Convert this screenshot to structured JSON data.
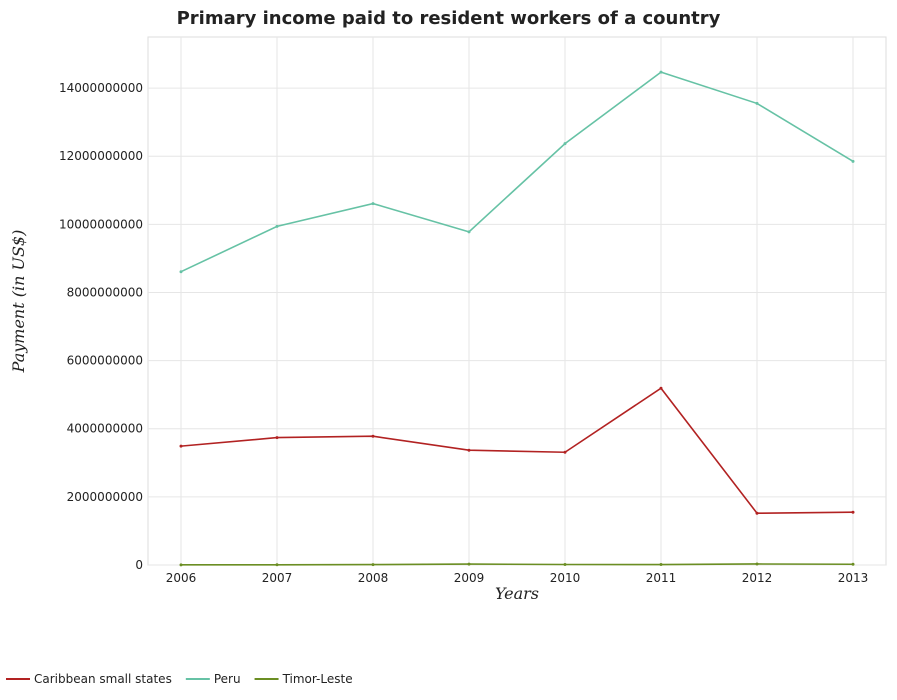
{
  "chart_data": {
    "type": "line",
    "title": "Primary income paid to resident workers of a country",
    "xlabel": "Years",
    "ylabel": "Payment (in US$)",
    "categories": [
      "2006",
      "2007",
      "2008",
      "2009",
      "2010",
      "2011",
      "2012",
      "2013"
    ],
    "ylim": [
      0,
      15500000000
    ],
    "yticks": [
      0,
      2000000000,
      4000000000,
      6000000000,
      8000000000,
      10000000000,
      12000000000,
      14000000000
    ],
    "ytick_labels": [
      "0",
      "2000000000",
      "4000000000",
      "6000000000",
      "8000000000",
      "10000000000",
      "12000000000",
      "14000000000"
    ],
    "grid": true,
    "legend_position": "bottom-left",
    "series": [
      {
        "name": "Caribbean small states",
        "color": "#b22222",
        "values": [
          3490000000,
          3740000000,
          3780000000,
          3370000000,
          3310000000,
          5190000000,
          1520000000,
          1550000000
        ]
      },
      {
        "name": "Peru",
        "color": "#66c2a5",
        "values": [
          8610000000,
          9940000000,
          10610000000,
          9780000000,
          12370000000,
          14470000000,
          13550000000,
          11850000000
        ]
      },
      {
        "name": "Timor-Leste",
        "color": "#6b8e23",
        "values": [
          5000000,
          6000000,
          12000000,
          27000000,
          15000000,
          14000000,
          30000000,
          22000000
        ]
      }
    ]
  }
}
